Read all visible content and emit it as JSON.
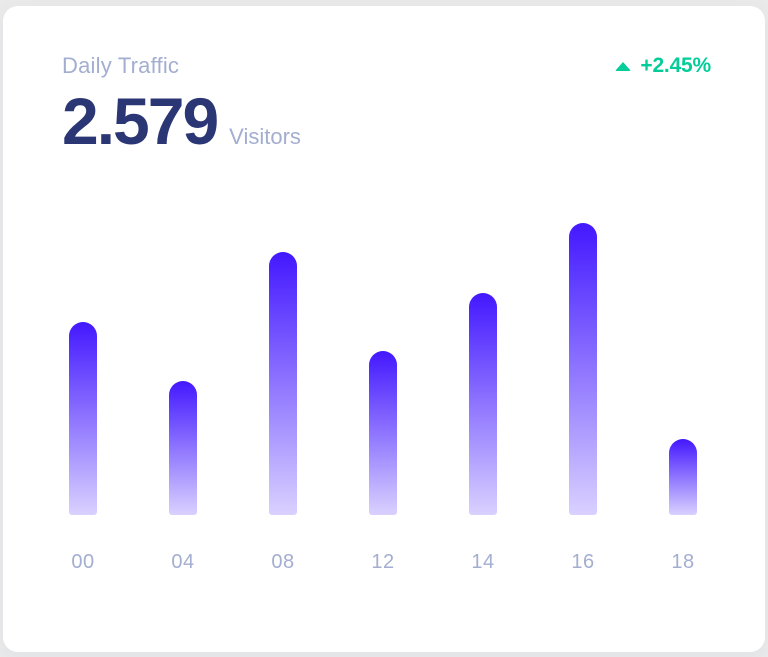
{
  "card": {
    "title": "Daily Traffic",
    "value": "2.579",
    "unit": "Visitors",
    "trend": {
      "direction": "up",
      "label": "+2.45%"
    }
  },
  "colors": {
    "accent": "#4318FF",
    "metric_navy": "#2B3674",
    "muted_gray": "#A3AED0",
    "positive_green": "#05CD99",
    "card_background": "#ffffff"
  },
  "chart_data": {
    "type": "bar",
    "title": "Daily Traffic",
    "categories": [
      "00",
      "04",
      "08",
      "12",
      "14",
      "16",
      "18"
    ],
    "values": [
      33,
      23,
      45,
      28,
      38,
      50,
      13
    ],
    "xlabel": "",
    "ylabel": "",
    "ylim": [
      0,
      50
    ],
    "grid": false,
    "legend": false,
    "axis_ticks_visible": "x-only",
    "bar_gradient_top": "#4318FF",
    "bar_gradient_bottom": "rgba(67, 24, 255, 0.2)"
  }
}
